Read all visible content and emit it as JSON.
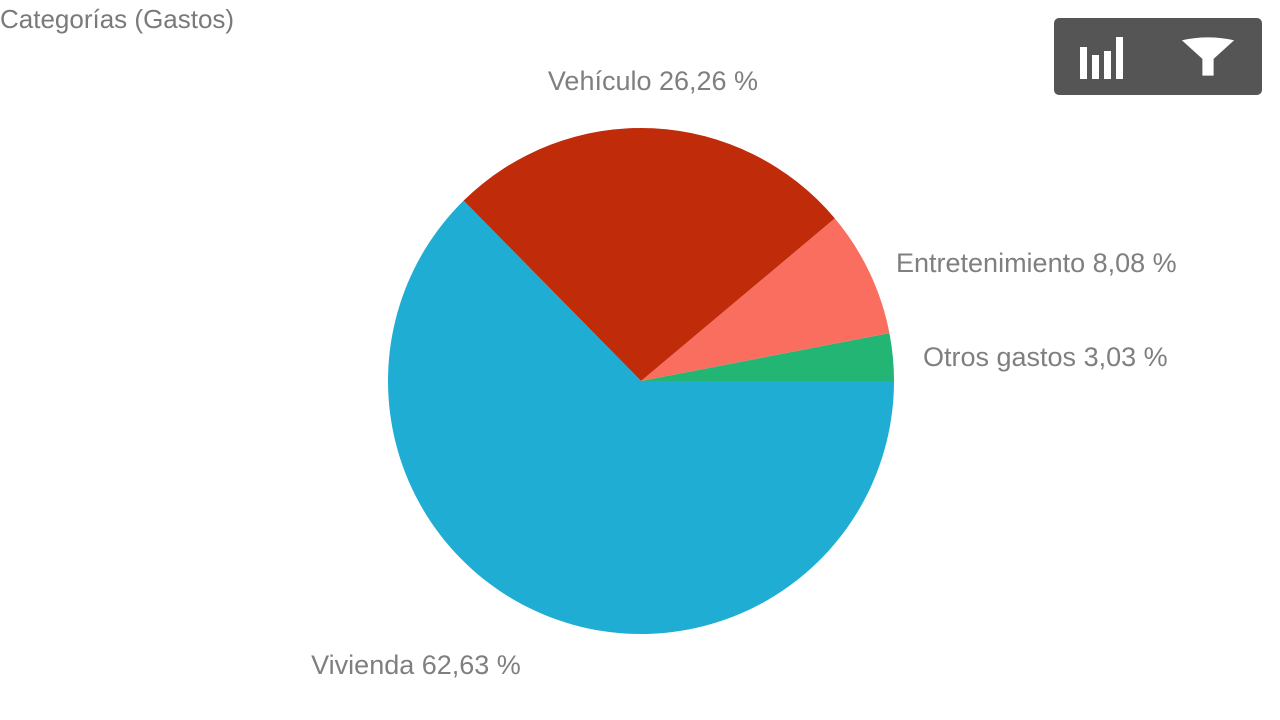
{
  "title": "Categorías (Gastos)",
  "toolbar": {
    "chart_button_icon": "bar-chart-icon",
    "filter_button_icon": "filter-icon",
    "background": "#555555",
    "icon_color": "#ffffff"
  },
  "chart_data": {
    "type": "pie",
    "title": "Categorías (Gastos)",
    "start_angle_deg": 0,
    "direction": "counterclockwise",
    "slices": [
      {
        "label": "Otros gastos",
        "value": 3.03,
        "display": "Otros gastos 3,03 %",
        "color": "#22b573"
      },
      {
        "label": "Entretenimiento",
        "value": 8.08,
        "display": "Entretenimiento 8,08 %",
        "color": "#fa6e5f"
      },
      {
        "label": "Vehículo",
        "value": 26.26,
        "display": "Vehículo 26,26 %",
        "color": "#c02b0a"
      },
      {
        "label": "Vivienda",
        "value": 62.63,
        "display": "Vivienda 62,63 %",
        "color": "#1fadd4"
      }
    ]
  }
}
